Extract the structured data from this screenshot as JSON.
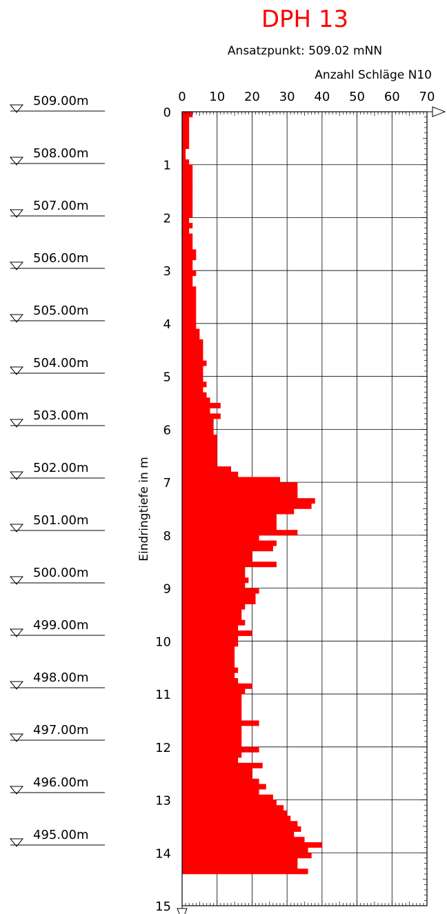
{
  "chart_data": {
    "type": "bar",
    "orientation": "horizontal",
    "title": "DPH 13",
    "subtitle": "Ansatzpunkt: 509.02 mNN",
    "xlabel": "Anzahl Schläge N10",
    "ylabel": "Eindringtiefe in m",
    "xlim": [
      0,
      70
    ],
    "ylim": [
      0,
      15
    ],
    "x_ticks": [
      "0",
      "10",
      "20",
      "30",
      "40",
      "50",
      "60",
      "70"
    ],
    "y_ticks": [
      "0",
      "1",
      "2",
      "3",
      "4",
      "5",
      "6",
      "7",
      "8",
      "9",
      "10",
      "11",
      "12",
      "13",
      "14",
      "15"
    ],
    "grid": true,
    "bar_color": "#ff0000",
    "bar_step": 0.1,
    "series": [
      {
        "values": [
          3,
          2,
          2,
          2,
          2,
          2,
          2,
          1,
          1,
          2,
          3,
          3,
          3,
          3,
          3,
          3,
          3,
          3,
          3,
          3,
          2,
          3,
          2,
          3,
          3,
          3,
          4,
          4,
          3,
          3,
          4,
          3,
          3,
          4,
          4,
          4,
          4,
          4,
          4,
          4,
          4,
          5,
          5,
          6,
          6,
          6,
          6,
          7,
          6,
          6,
          6,
          7,
          6,
          7,
          8,
          11,
          8,
          11,
          9,
          9,
          9,
          10,
          10,
          10,
          10,
          10,
          10,
          14,
          16,
          28,
          33,
          33,
          33,
          38,
          37,
          32,
          27,
          27,
          27,
          33,
          22,
          27,
          26,
          20,
          20,
          27,
          18,
          18,
          19,
          18,
          22,
          21,
          21,
          18,
          17,
          17,
          18,
          16,
          20,
          16,
          16,
          15,
          15,
          15,
          15,
          16,
          15,
          16,
          20,
          18,
          17,
          17,
          17,
          17,
          17,
          22,
          17,
          17,
          17,
          17,
          22,
          17,
          16,
          23,
          20,
          20,
          22,
          24,
          22,
          26,
          27,
          29,
          30,
          31,
          33,
          34,
          32,
          35,
          40,
          36,
          37,
          33,
          33,
          36
        ]
      }
    ],
    "elevation_markers": [
      "509.00m",
      "508.00m",
      "507.00m",
      "506.00m",
      "505.00m",
      "504.00m",
      "503.00m",
      "502.00m",
      "501.00m",
      "500.00m",
      "499.00m",
      "498.00m",
      "497.00m",
      "496.00m",
      "495.00m"
    ]
  }
}
